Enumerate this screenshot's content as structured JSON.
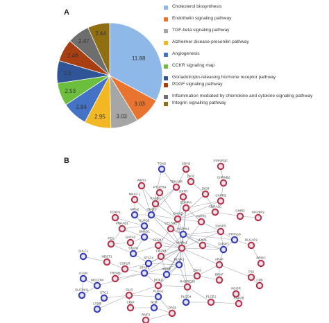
{
  "panels": {
    "a": "A",
    "b": "B"
  },
  "chart_data": {
    "type": "pie",
    "categories": [
      "Cholesterol biosynthesis",
      "Endothelin signaling pathway",
      "TGF-beta signaling pathway",
      "Alzheimer disease-presenilin pathway",
      "Angiogenesis",
      "CCKR signaling map",
      "Gonadotropin-releasing hormone receptor pathway",
      "PDGF signaling pathway",
      "Inflammation mediated by chemokine and cytokine signaling pathway",
      "Integrin signalling pathway"
    ],
    "values": [
      11.88,
      3.03,
      3.03,
      2.95,
      2.84,
      2.53,
      2.5,
      2.48,
      2.47,
      2.44
    ],
    "value_labels": [
      "11.88",
      "3.03",
      "3.03",
      "2.95",
      "2.84",
      "2.53",
      "2.5",
      "2.48",
      "2.47",
      "2.44"
    ],
    "colors": [
      "#8db8e8",
      "#e8742f",
      "#a6a6a6",
      "#f2b824",
      "#4472c4",
      "#6cbf3c",
      "#2f5597",
      "#a83f12",
      "#6e6e6e",
      "#8f6f12"
    ],
    "legend_position": "right"
  },
  "network": {
    "nodes": [
      {
        "label": "TGN2",
        "type": "blue"
      },
      {
        "label": "CDH2",
        "type": "red"
      },
      {
        "label": "PPP2R2C",
        "type": "red"
      },
      {
        "label": "DIO2",
        "type": "red"
      },
      {
        "label": "CHRNB2",
        "type": "red"
      },
      {
        "label": "TEKA3R",
        "type": "red"
      },
      {
        "label": "WNT2",
        "type": "red"
      },
      {
        "label": "PTGER4",
        "type": "red"
      },
      {
        "label": "OXTR",
        "type": "red"
      },
      {
        "label": "DIO3",
        "type": "red"
      },
      {
        "label": "CXPR5",
        "type": "red"
      },
      {
        "label": "MKX7-1",
        "type": "red"
      },
      {
        "label": "RASD1",
        "type": "red"
      },
      {
        "label": "EDNRA",
        "type": "red"
      },
      {
        "label": "ADRA2C",
        "type": "red"
      },
      {
        "label": "GNG7",
        "type": "blue"
      },
      {
        "label": "CHRD",
        "type": "red"
      },
      {
        "label": "MFN2",
        "type": "blue"
      },
      {
        "label": "GNAQ",
        "type": "red"
      },
      {
        "label": "AVPR2",
        "type": "red"
      },
      {
        "label": "KIF26P2",
        "type": "red"
      },
      {
        "label": "FOXP1",
        "type": "red"
      },
      {
        "label": "KLRC2",
        "type": "blue"
      },
      {
        "label": "CELSR2",
        "type": "red"
      },
      {
        "label": "FRKAB1",
        "type": "red"
      },
      {
        "label": "SMAD1",
        "type": "blue"
      },
      {
        "label": "MAP4K1",
        "type": "blue"
      },
      {
        "label": "DUSP5",
        "type": "red"
      },
      {
        "label": "PTPN18",
        "type": "blue"
      },
      {
        "label": "GATA3",
        "type": "red"
      },
      {
        "label": "CD247",
        "type": "red"
      },
      {
        "label": "FES",
        "type": "red"
      },
      {
        "label": "STAT6",
        "type": "blue"
      },
      {
        "label": "CD79B",
        "type": "red"
      },
      {
        "label": "MAPK1",
        "type": "red"
      },
      {
        "label": "IFI44L",
        "type": "red"
      },
      {
        "label": "DUSP7",
        "type": "blue"
      },
      {
        "label": "DLGAP2",
        "type": "red"
      },
      {
        "label": "SULF1",
        "type": "blue"
      },
      {
        "label": "NDST1",
        "type": "red"
      },
      {
        "label": "CSF1R",
        "type": "red"
      },
      {
        "label": "STAT4",
        "type": "blue"
      },
      {
        "label": "BLNK1",
        "type": "blue"
      },
      {
        "label": "PROC",
        "type": "red"
      },
      {
        "label": "ARAF",
        "type": "red"
      },
      {
        "label": "ICAM",
        "type": "blue"
      },
      {
        "label": "TREM1",
        "type": "red"
      },
      {
        "label": "STAT1",
        "type": "blue"
      },
      {
        "label": "IKBKE",
        "type": "blue"
      },
      {
        "label": "ZNF3",
        "type": "red"
      },
      {
        "label": "BRAF",
        "type": "red"
      },
      {
        "label": "MCCOM",
        "type": "blue"
      },
      {
        "label": "DOK3",
        "type": "red"
      },
      {
        "label": "RARRES3",
        "type": "red"
      },
      {
        "label": "P15",
        "type": "red"
      },
      {
        "label": "CD6",
        "type": "red"
      },
      {
        "label": "SLC34A1",
        "type": "blue"
      },
      {
        "label": "GLI3",
        "type": "red"
      },
      {
        "label": "PLCG2",
        "type": "blue"
      },
      {
        "label": "NCOR",
        "type": "red"
      },
      {
        "label": "STC1",
        "type": "blue"
      },
      {
        "label": "PLCD4",
        "type": "blue"
      },
      {
        "label": "PLCE1",
        "type": "red"
      },
      {
        "label": "RAP2B",
        "type": "red"
      },
      {
        "label": "LTBR",
        "type": "blue"
      },
      {
        "label": "CISH",
        "type": "red"
      },
      {
        "label": "NCR",
        "type": "blue"
      },
      {
        "label": "TP63",
        "type": "red"
      },
      {
        "label": "RNF3",
        "type": "red"
      }
    ]
  }
}
